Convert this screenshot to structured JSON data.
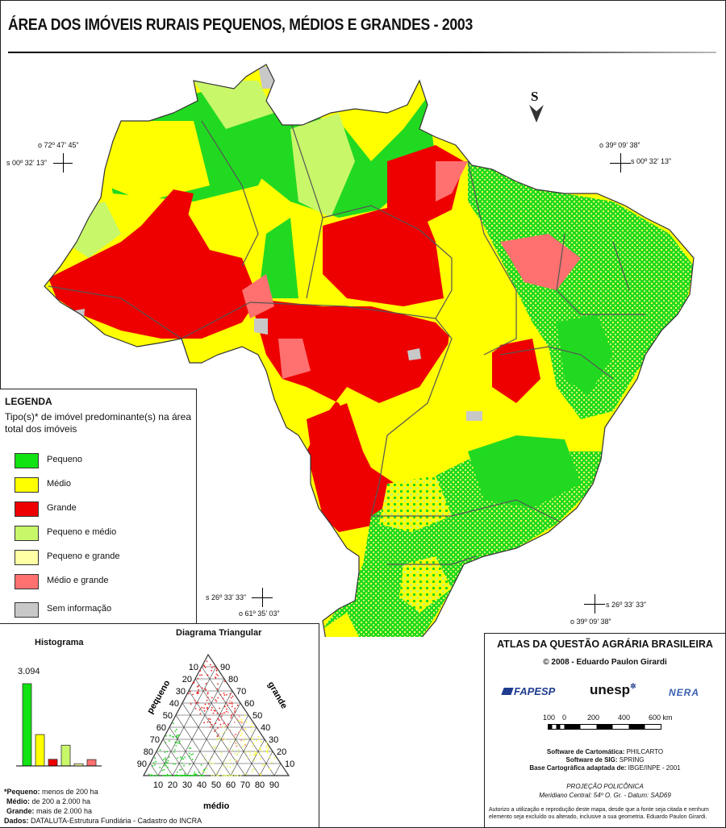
{
  "title": "ÁREA DOS IMÓVEIS RURAIS PEQUENOS, MÉDIOS E GRANDES - 2003",
  "north_arrow": "S",
  "coordinates": {
    "nw_lon": "o 72º 47’ 45”",
    "nw_lat": "s 00º 32’ 13”",
    "ne_lon": "o 39º 09’ 38”",
    "ne_lat": "s 00º 32’ 13”",
    "sw_lat": "s 26º 33’ 33”",
    "sw_lon": "o 61º 35’ 03”",
    "se_lat": "s 26º 33’ 33”",
    "se_lon": "o 39º 09’ 38”"
  },
  "legend": {
    "title": "LEGENDA",
    "subtitle": "Tipo(s)* de imóvel predominante(s) na área total dos imóveis",
    "items": [
      {
        "label": "Pequeno",
        "color": "#11e211"
      },
      {
        "label": "Médio",
        "color": "#ffff00"
      },
      {
        "label": "Grande",
        "color": "#ee0000"
      },
      {
        "label": "Pequeno e médio",
        "color": "#c8f76a"
      },
      {
        "label": "Pequeno e grande",
        "color": "#ffffa6"
      },
      {
        "label": "Médio e grande",
        "color": "#ff7070"
      },
      {
        "label": "Sem informação",
        "color": "#c8c8c8"
      }
    ]
  },
  "histogram": {
    "title": "Histograma",
    "max_label": "3.094",
    "bars": [
      {
        "category": "Pequeno",
        "value": 3094,
        "color": "#11e211"
      },
      {
        "category": "Médio",
        "value": 1180,
        "color": "#ffff00"
      },
      {
        "category": "Grande",
        "value": 250,
        "color": "#ee0000"
      },
      {
        "category": "Pequeno e médio",
        "value": 780,
        "color": "#c8f76a"
      },
      {
        "category": "Pequeno e grande",
        "value": 80,
        "color": "#ffffa6"
      },
      {
        "category": "Médio e grande",
        "value": 240,
        "color": "#ff7070"
      }
    ]
  },
  "triangle": {
    "title": "Diagrama Triangular",
    "left_axis_label": "pequeno",
    "right_axis_label": "grande",
    "bottom_axis_label": "médio",
    "ticks": [
      "10",
      "20",
      "30",
      "40",
      "50",
      "60",
      "70",
      "80",
      "90"
    ]
  },
  "definitions": [
    {
      "term": "*Pequeno:",
      "text": " menos de 200 ha"
    },
    {
      "term": "Médio:",
      "text": " de 200 a 2.000 ha"
    },
    {
      "term": "Grande:",
      "text": " mais de 2.000 ha"
    },
    {
      "term": "Dados:",
      "text": " DATALUTA-Estrutura Fundiária - Cadastro do INCRA"
    }
  ],
  "atlas": {
    "title": "ATLAS DA QUESTÃO AGRÁRIA BRASILEIRA",
    "copyright": "© 2008 - Eduardo Paulon Girardi",
    "logos": [
      "FAPESP",
      "unesp",
      "NERA"
    ],
    "scale_labels": [
      "100",
      "0",
      "200",
      "400",
      "600 km"
    ],
    "software_lines": [
      {
        "term": "Software de Cartomática:",
        "text": " PHILCARTO"
      },
      {
        "term": "Software de SIG:",
        "text": " SPRING"
      },
      {
        "term": "Base Cartográfica adaptada de:",
        "text": " IBGE/INPE - 2001"
      }
    ],
    "projection_title": "PROJEÇÃO POLICÔNICA",
    "projection_detail": "Meridiano Central: 54º O. Gr. - Datum: SAD69",
    "authorization": "Autorizo a utilização e reprodução deste mapa, desde que a fonte seja citada e nenhum elemento seja excluído ou alterado, inclusive a sua geometria. Eduardo Paulon Girardi."
  }
}
